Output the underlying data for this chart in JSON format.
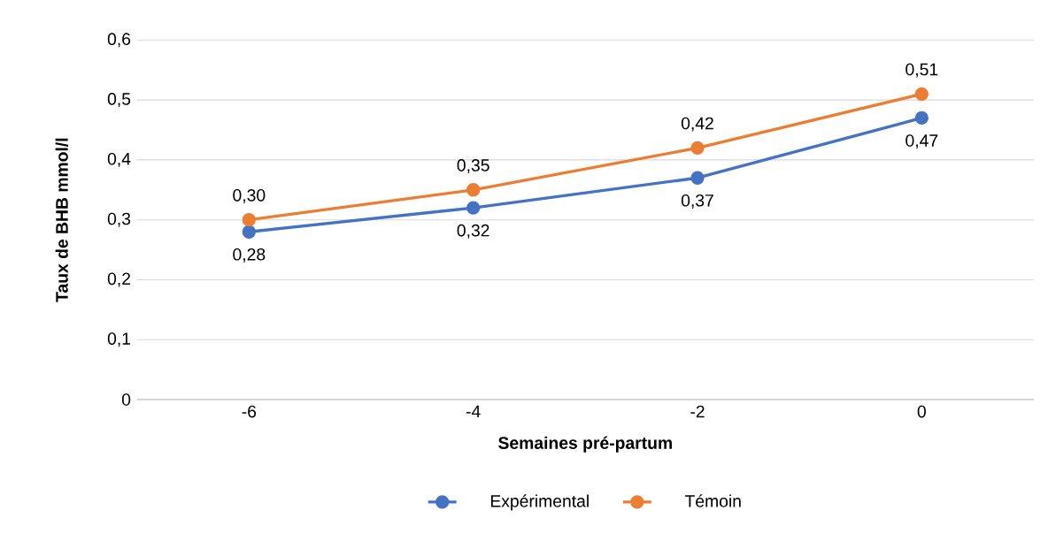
{
  "chart_data": {
    "type": "line",
    "xlabel": "Semaines pré-partum",
    "ylabel": "Taux de BHB mmol/l",
    "categories": [
      "-6",
      "-4",
      "-2",
      "0"
    ],
    "series": [
      {
        "name": "Expérimental",
        "color": "#4472c4",
        "values": [
          0.28,
          0.32,
          0.37,
          0.47
        ],
        "value_labels": [
          "0,28",
          "0,32",
          "0,37",
          "0,47"
        ]
      },
      {
        "name": "Témoin",
        "color": "#ed7d31",
        "values": [
          0.3,
          0.35,
          0.42,
          0.51
        ],
        "value_labels": [
          "0,30",
          "0,35",
          "0,42",
          "0,51"
        ]
      }
    ],
    "ylim": [
      0,
      0.6
    ],
    "yticks": [
      {
        "value": 0,
        "label": "0"
      },
      {
        "value": 0.1,
        "label": "0,1"
      },
      {
        "value": 0.2,
        "label": "0,2"
      },
      {
        "value": 0.3,
        "label": "0,3"
      },
      {
        "value": 0.4,
        "label": "0,4"
      },
      {
        "value": 0.5,
        "label": "0,5"
      },
      {
        "value": 0.6,
        "label": "0,6"
      }
    ],
    "grid": "y",
    "legend": "bottom",
    "marker": "circle",
    "line_style": "solid"
  }
}
